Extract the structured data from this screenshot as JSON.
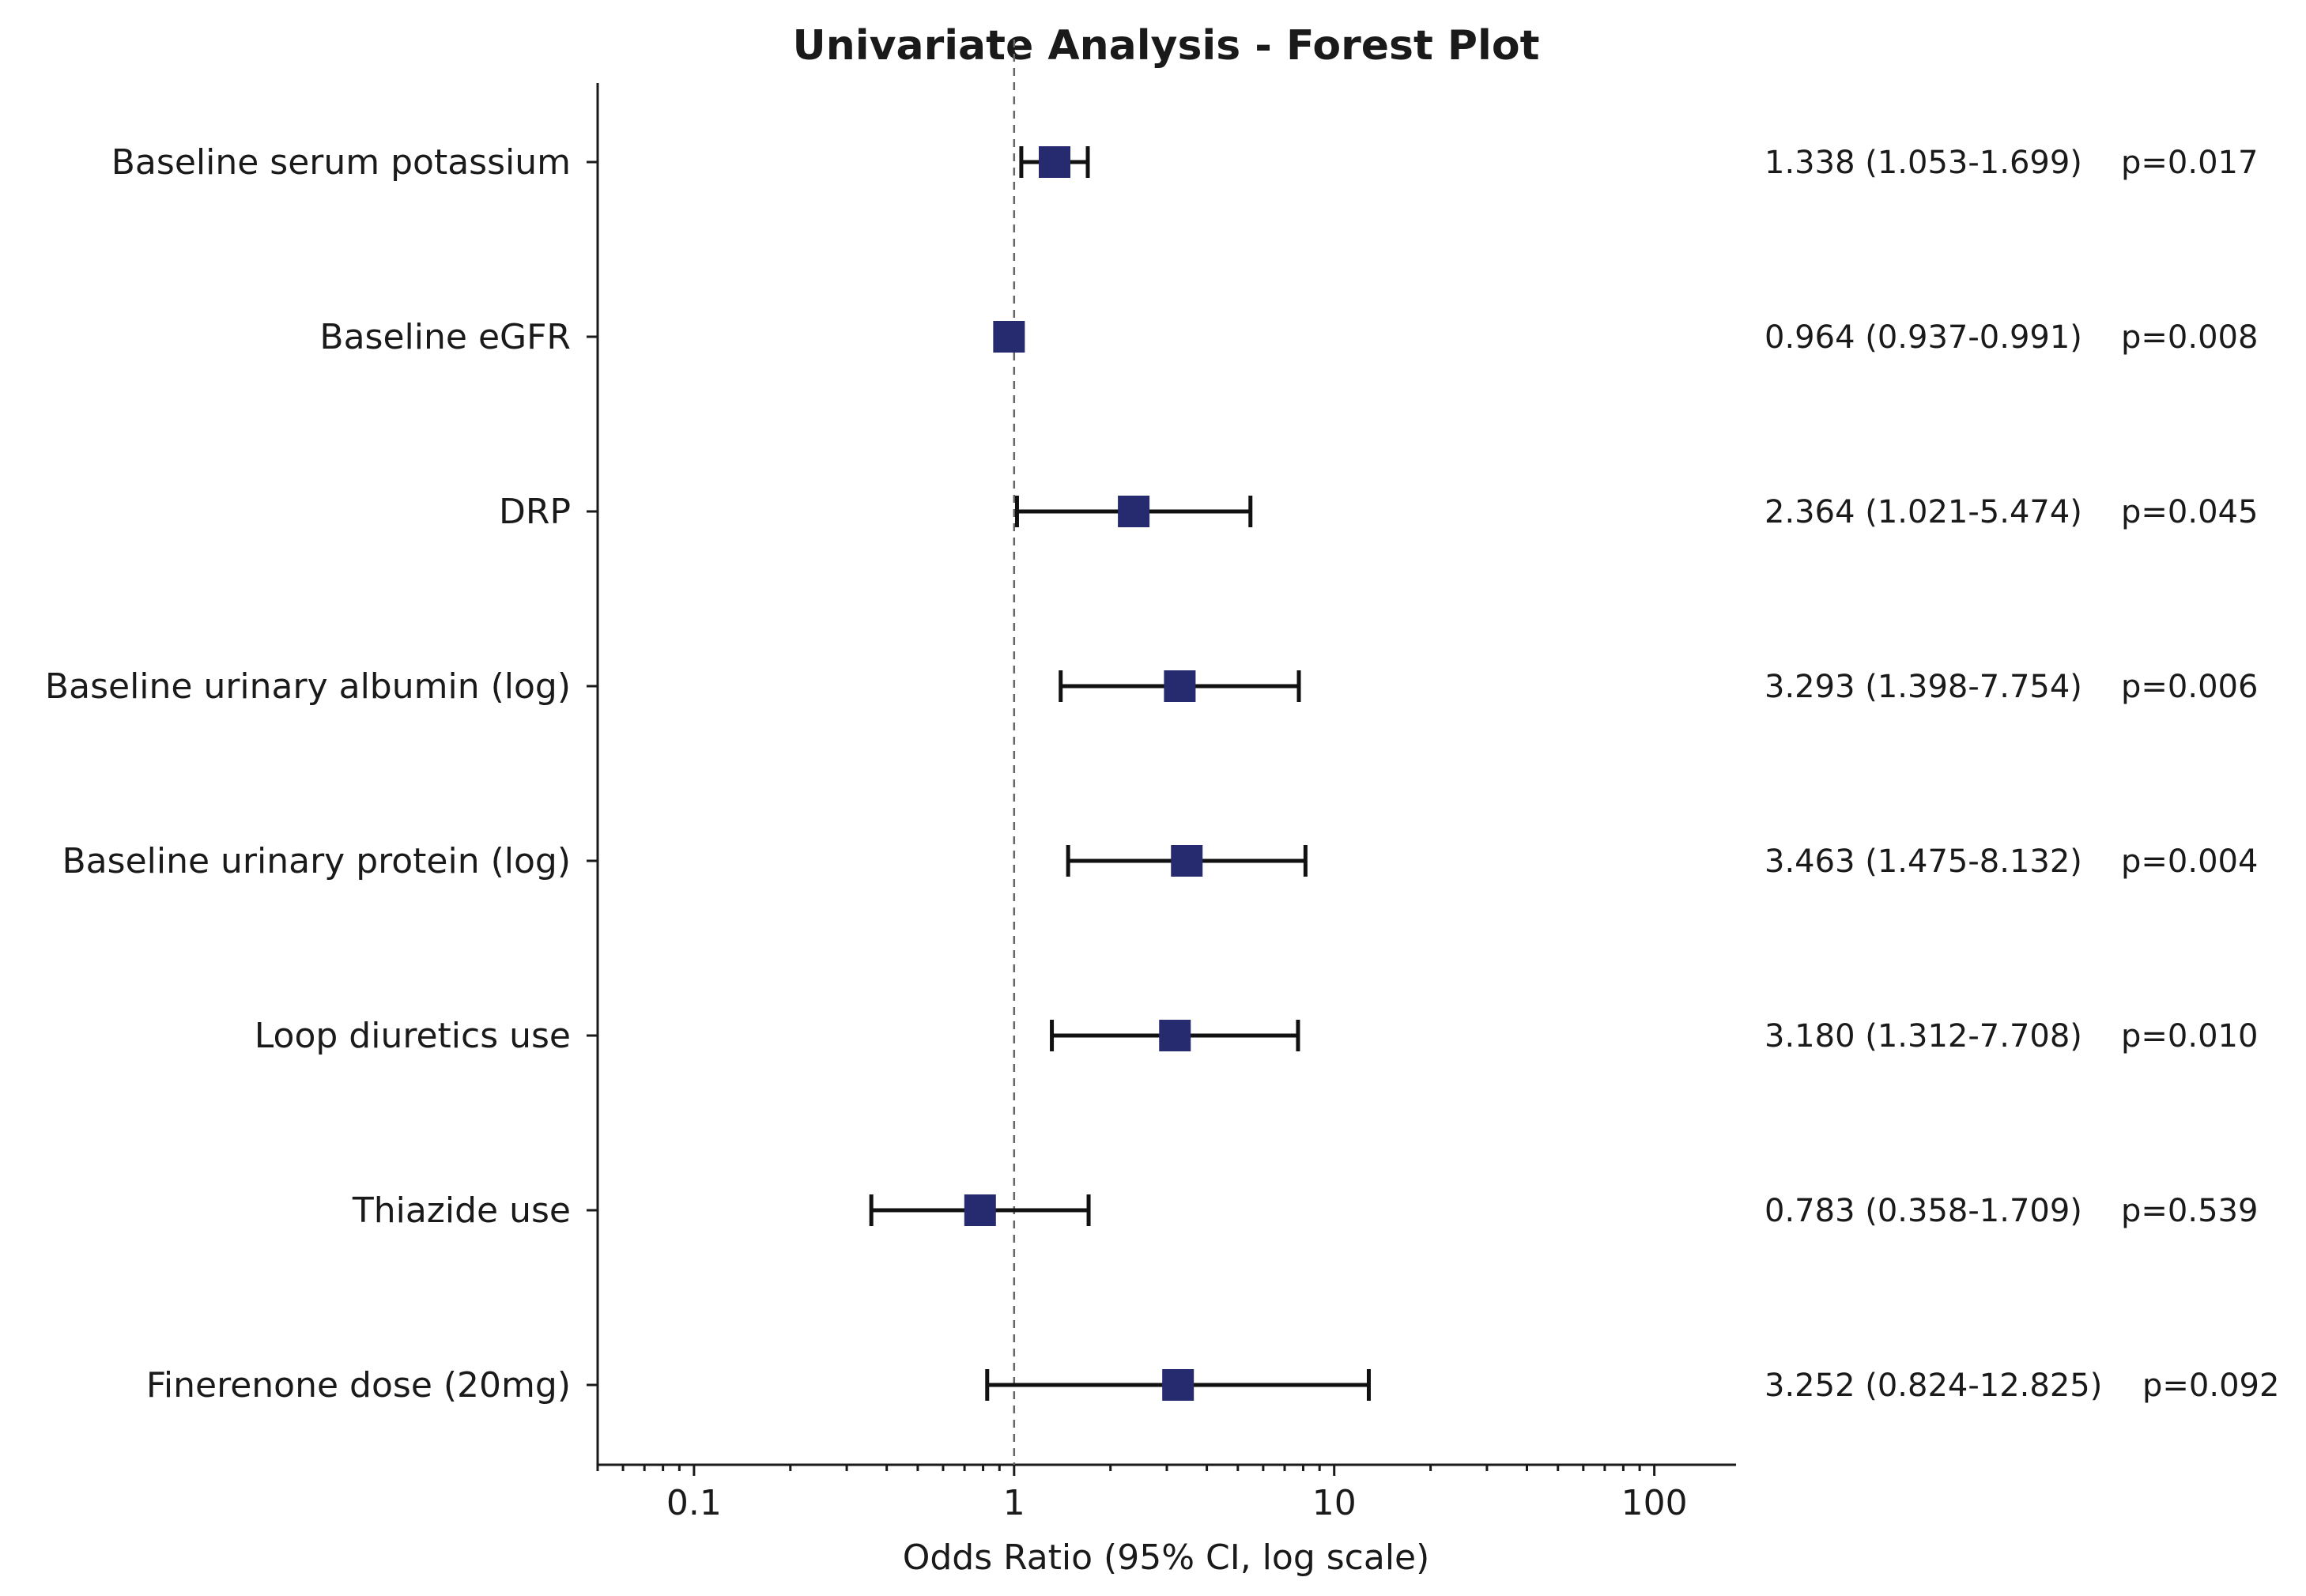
{
  "chart_data": {
    "type": "scatter",
    "subtype": "forest-plot",
    "title": "Univariate Analysis - Forest Plot",
    "xlabel": "Odds Ratio (95% CI, log scale)",
    "ylabel": "",
    "x_scale": "log",
    "xlim": [
      0.05,
      180
    ],
    "x_ticks": [
      0.1,
      1,
      10,
      100
    ],
    "x_tick_labels": [
      "0.1",
      "1",
      "10",
      "100"
    ],
    "reference_line": 1,
    "marker_color": "#262a6e",
    "rows": [
      {
        "label": "Baseline serum potassium",
        "or": 1.338,
        "low": 1.053,
        "high": 1.699,
        "text": "1.338 (1.053-1.699)",
        "p": "p=0.017"
      },
      {
        "label": "Baseline eGFR",
        "or": 0.964,
        "low": 0.937,
        "high": 0.991,
        "text": "0.964 (0.937-0.991)",
        "p": "p=0.008"
      },
      {
        "label": "DRP",
        "or": 2.364,
        "low": 1.021,
        "high": 5.474,
        "text": "2.364 (1.021-5.474)",
        "p": "p=0.045"
      },
      {
        "label": "Baseline urinary albumin (log)",
        "or": 3.293,
        "low": 1.398,
        "high": 7.754,
        "text": "3.293 (1.398-7.754)",
        "p": "p=0.006"
      },
      {
        "label": "Baseline urinary protein (log)",
        "or": 3.463,
        "low": 1.475,
        "high": 8.132,
        "text": "3.463 (1.475-8.132)",
        "p": "p=0.004"
      },
      {
        "label": "Loop diuretics use",
        "or": 3.18,
        "low": 1.312,
        "high": 7.708,
        "text": "3.180 (1.312-7.708)",
        "p": "p=0.010"
      },
      {
        "label": "Thiazide use",
        "or": 0.783,
        "low": 0.358,
        "high": 1.709,
        "text": "0.783 (0.358-1.709)",
        "p": "p=0.539"
      },
      {
        "label": "Finerenone dose (20mg)",
        "or": 3.252,
        "low": 0.824,
        "high": 12.825,
        "text": "3.252 (0.824-12.825)",
        "p": "p=0.092"
      }
    ]
  }
}
